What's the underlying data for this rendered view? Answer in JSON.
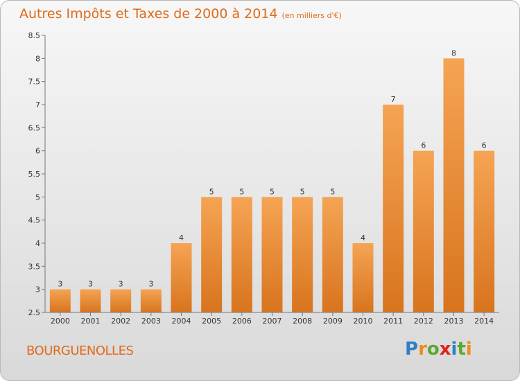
{
  "header": {
    "title": "Autres Impôts et Taxes de 2000 à 2014",
    "subtitle": "(en milliers d'€)"
  },
  "commune": "BOURGUENOLLES",
  "logo": {
    "letters": [
      "P",
      "r",
      "o",
      "x",
      "i",
      "t",
      "i"
    ],
    "colors": [
      "#2f7fc1",
      "#f08a1c",
      "#5aa832",
      "#e2231a",
      "#2f7fc1",
      "#5aa832",
      "#f08a1c"
    ]
  },
  "chart_data": {
    "type": "bar",
    "title": "Autres Impôts et Taxes de 2000 à 2014",
    "categories": [
      "2000",
      "2001",
      "2002",
      "2003",
      "2004",
      "2005",
      "2006",
      "2007",
      "2008",
      "2009",
      "2010",
      "2011",
      "2012",
      "2013",
      "2014"
    ],
    "values": [
      3,
      3,
      3,
      3,
      4,
      5,
      5,
      5,
      5,
      5,
      4,
      7,
      6,
      8,
      6
    ],
    "data_labels": [
      "3",
      "3",
      "3",
      "3",
      "4",
      "5",
      "5",
      "5",
      "5",
      "5",
      "4",
      "7",
      "6",
      "8",
      "6"
    ],
    "ylim": [
      2.5,
      8.5
    ],
    "yticks": [
      "2.5",
      "3",
      "3.5",
      "4",
      "4.5",
      "5",
      "5.5",
      "6",
      "6.5",
      "7",
      "7.5",
      "8",
      "8.5"
    ],
    "grid": false,
    "colors": {
      "bar_top": "#f5a454",
      "bar_bottom": "#d8741e",
      "axis": "#777777"
    }
  }
}
